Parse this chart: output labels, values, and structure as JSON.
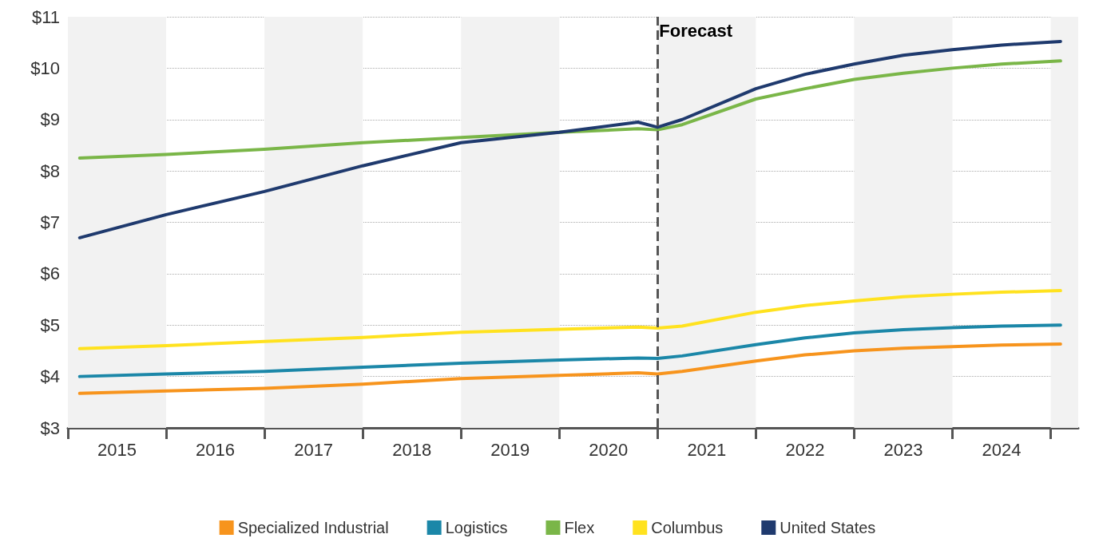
{
  "chart_data": {
    "type": "line",
    "x": [
      2015.12,
      2016,
      2017,
      2018,
      2019,
      2020,
      2020.8,
      2021,
      2021.25,
      2022,
      2022.5,
      2023,
      2023.5,
      2024,
      2024.5,
      2025.1
    ],
    "series": [
      {
        "name": "Specialized Industrial",
        "color": "#f7941d",
        "values": [
          3.67,
          3.72,
          3.77,
          3.85,
          3.96,
          4.02,
          4.07,
          4.05,
          4.1,
          4.3,
          4.42,
          4.5,
          4.55,
          4.58,
          4.61,
          4.63
        ]
      },
      {
        "name": "Logistics",
        "color": "#1b87a8",
        "values": [
          4.0,
          4.05,
          4.1,
          4.18,
          4.26,
          4.32,
          4.36,
          4.35,
          4.4,
          4.62,
          4.75,
          4.85,
          4.91,
          4.95,
          4.98,
          5.0
        ]
      },
      {
        "name": "Flex",
        "color": "#7ab648",
        "values": [
          8.25,
          8.32,
          8.42,
          8.55,
          8.65,
          8.75,
          8.82,
          8.8,
          8.9,
          9.4,
          9.6,
          9.78,
          9.9,
          10.0,
          10.08,
          10.14
        ]
      },
      {
        "name": "Columbus",
        "color": "#ffe21f",
        "values": [
          4.54,
          4.6,
          4.68,
          4.76,
          4.86,
          4.92,
          4.96,
          4.94,
          4.98,
          5.25,
          5.38,
          5.47,
          5.55,
          5.6,
          5.64,
          5.67
        ]
      },
      {
        "name": "United States",
        "color": "#1f3a6e",
        "values": [
          6.7,
          7.15,
          7.6,
          8.1,
          8.55,
          8.75,
          8.95,
          8.85,
          9.0,
          9.6,
          9.88,
          10.08,
          10.25,
          10.36,
          10.45,
          10.52
        ]
      }
    ],
    "xlim": [
      2015,
      2025.28
    ],
    "xticks": [
      {
        "value": 2015,
        "label": null
      },
      {
        "value": 2015.5,
        "label": "2015"
      },
      {
        "value": 2016,
        "label": null
      },
      {
        "value": 2016.5,
        "label": "2016"
      },
      {
        "value": 2017,
        "label": null
      },
      {
        "value": 2017.5,
        "label": "2017"
      },
      {
        "value": 2018,
        "label": null
      },
      {
        "value": 2018.5,
        "label": "2018"
      },
      {
        "value": 2019,
        "label": null
      },
      {
        "value": 2019.5,
        "label": "2019"
      },
      {
        "value": 2020,
        "label": null
      },
      {
        "value": 2020.5,
        "label": "2020"
      },
      {
        "value": 2021,
        "label": null
      },
      {
        "value": 2021.5,
        "label": "2021"
      },
      {
        "value": 2022,
        "label": null
      },
      {
        "value": 2022.5,
        "label": "2022"
      },
      {
        "value": 2023,
        "label": null
      },
      {
        "value": 2023.5,
        "label": "2023"
      },
      {
        "value": 2024,
        "label": null
      },
      {
        "value": 2024.5,
        "label": "2024"
      },
      {
        "value": 2025,
        "label": null
      }
    ],
    "ylim": [
      3,
      11
    ],
    "yticks": [
      {
        "value": 3,
        "label": "$3"
      },
      {
        "value": 4,
        "label": "$4"
      },
      {
        "value": 5,
        "label": "$5"
      },
      {
        "value": 6,
        "label": "$6"
      },
      {
        "value": 7,
        "label": "$7"
      },
      {
        "value": 8,
        "label": "$8"
      },
      {
        "value": 9,
        "label": "$9"
      },
      {
        "value": 10,
        "label": "$10"
      },
      {
        "value": 11,
        "label": "$11"
      }
    ],
    "grid": "y",
    "legend": "bottom",
    "marker": "none",
    "line_style": "solid",
    "ref_lines": [
      {
        "axis": "x",
        "value": 2021,
        "label": "Forecast",
        "color": "#555555",
        "line_style": "dashed"
      }
    ],
    "bands": [
      {
        "axis": "x",
        "from": 2015,
        "to": 2016,
        "color": "#f2f2f2"
      },
      {
        "axis": "x",
        "from": 2017,
        "to": 2018,
        "color": "#f2f2f2"
      },
      {
        "axis": "x",
        "from": 2019,
        "to": 2020,
        "color": "#f2f2f2"
      },
      {
        "axis": "x",
        "from": 2021,
        "to": 2022,
        "color": "#f2f2f2"
      },
      {
        "axis": "x",
        "from": 2023,
        "to": 2024,
        "color": "#f2f2f2"
      },
      {
        "axis": "x",
        "from": 2025,
        "to": 2025.28,
        "color": "#f2f2f2"
      }
    ]
  }
}
